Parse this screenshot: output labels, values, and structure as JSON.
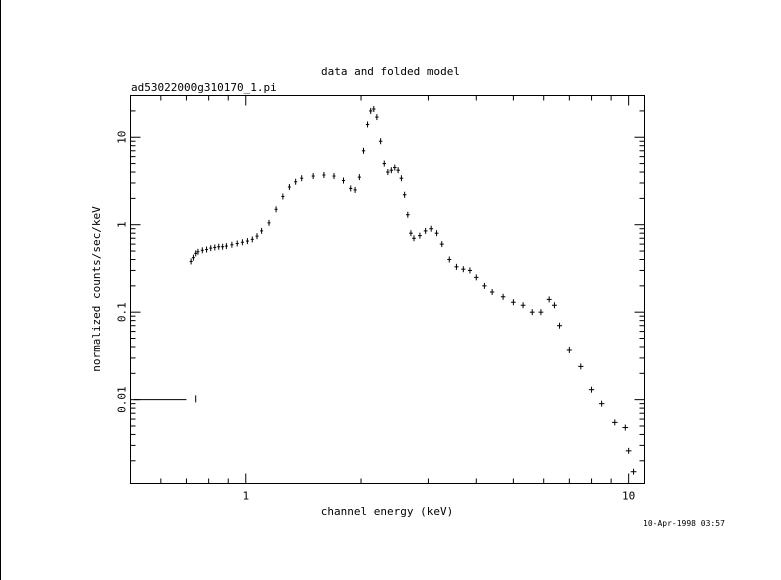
{
  "chart_data": {
    "type": "scatter",
    "title": "data and folded model",
    "subtitle": "ad53022000g310170_1.pi",
    "xlabel": "channel energy (keV)",
    "ylabel": "normalized counts/sec/keV",
    "xscale": "log",
    "yscale": "log",
    "xlim": [
      0.5,
      11
    ],
    "ylim": [
      0.0011,
      30
    ],
    "xticks": [
      {
        "value": 1,
        "label": "1"
      },
      {
        "value": 10,
        "label": "10"
      }
    ],
    "yticks": [
      {
        "value": 0.01,
        "label": "0.01"
      },
      {
        "value": 0.1,
        "label": "0.1"
      },
      {
        "value": 1,
        "label": "1"
      },
      {
        "value": 10,
        "label": "10"
      }
    ],
    "grid": false,
    "legend": "none",
    "timestamp": "10-Apr-1998 03:57",
    "color": "#000000",
    "series": [
      {
        "points": [
          {
            "x": 0.74,
            "y": 0.01,
            "xerr": [
              0.51,
              0.7
            ],
            "yerr": [
              0.0093,
              0.0112
            ]
          },
          {
            "x": 0.72,
            "y": 0.38
          },
          {
            "x": 0.73,
            "y": 0.42
          },
          {
            "x": 0.74,
            "y": 0.47
          },
          {
            "x": 0.75,
            "y": 0.49
          },
          {
            "x": 0.77,
            "y": 0.51
          },
          {
            "x": 0.79,
            "y": 0.52
          },
          {
            "x": 0.81,
            "y": 0.54
          },
          {
            "x": 0.83,
            "y": 0.55
          },
          {
            "x": 0.85,
            "y": 0.56
          },
          {
            "x": 0.87,
            "y": 0.56
          },
          {
            "x": 0.89,
            "y": 0.57
          },
          {
            "x": 0.92,
            "y": 0.59
          },
          {
            "x": 0.95,
            "y": 0.61
          },
          {
            "x": 0.98,
            "y": 0.63
          },
          {
            "x": 1.01,
            "y": 0.65
          },
          {
            "x": 1.04,
            "y": 0.68
          },
          {
            "x": 1.07,
            "y": 0.74
          },
          {
            "x": 1.1,
            "y": 0.85
          },
          {
            "x": 1.15,
            "y": 1.05
          },
          {
            "x": 1.2,
            "y": 1.5
          },
          {
            "x": 1.25,
            "y": 2.1
          },
          {
            "x": 1.3,
            "y": 2.7
          },
          {
            "x": 1.35,
            "y": 3.1
          },
          {
            "x": 1.4,
            "y": 3.4
          },
          {
            "x": 1.5,
            "y": 3.6
          },
          {
            "x": 1.6,
            "y": 3.7
          },
          {
            "x": 1.7,
            "y": 3.6
          },
          {
            "x": 1.8,
            "y": 3.2
          },
          {
            "x": 1.88,
            "y": 2.6
          },
          {
            "x": 1.93,
            "y": 2.5
          },
          {
            "x": 1.98,
            "y": 3.5
          },
          {
            "x": 2.03,
            "y": 7.0
          },
          {
            "x": 2.08,
            "y": 14.0
          },
          {
            "x": 2.12,
            "y": 20.0
          },
          {
            "x": 2.16,
            "y": 21.0
          },
          {
            "x": 2.2,
            "y": 17.0
          },
          {
            "x": 2.25,
            "y": 9.0
          },
          {
            "x": 2.3,
            "y": 5.0
          },
          {
            "x": 2.35,
            "y": 4.0
          },
          {
            "x": 2.4,
            "y": 4.2
          },
          {
            "x": 2.45,
            "y": 4.5
          },
          {
            "x": 2.5,
            "y": 4.2
          },
          {
            "x": 2.55,
            "y": 3.4
          },
          {
            "x": 2.6,
            "y": 2.2
          },
          {
            "x": 2.65,
            "y": 1.3
          },
          {
            "x": 2.7,
            "y": 0.8
          },
          {
            "x": 2.75,
            "y": 0.7
          },
          {
            "x": 2.85,
            "y": 0.75
          },
          {
            "x": 2.95,
            "y": 0.85
          },
          {
            "x": 3.05,
            "y": 0.9
          },
          {
            "x": 3.15,
            "y": 0.8
          },
          {
            "x": 3.25,
            "y": 0.6
          },
          {
            "x": 3.4,
            "y": 0.4
          },
          {
            "x": 3.55,
            "y": 0.33
          },
          {
            "x": 3.7,
            "y": 0.31
          },
          {
            "x": 3.85,
            "y": 0.3
          },
          {
            "x": 4.0,
            "y": 0.25
          },
          {
            "x": 4.2,
            "y": 0.2
          },
          {
            "x": 4.4,
            "y": 0.17
          },
          {
            "x": 4.7,
            "y": 0.15
          },
          {
            "x": 5.0,
            "y": 0.13
          },
          {
            "x": 5.3,
            "y": 0.12
          },
          {
            "x": 5.6,
            "y": 0.1
          },
          {
            "x": 5.9,
            "y": 0.1
          },
          {
            "x": 6.2,
            "y": 0.14
          },
          {
            "x": 6.4,
            "y": 0.12
          },
          {
            "x": 6.6,
            "y": 0.07
          },
          {
            "x": 7.0,
            "y": 0.037
          },
          {
            "x": 7.5,
            "y": 0.024
          },
          {
            "x": 8.0,
            "y": 0.013
          },
          {
            "x": 8.5,
            "y": 0.009
          },
          {
            "x": 9.2,
            "y": 0.0055
          },
          {
            "x": 9.8,
            "y": 0.0048
          },
          {
            "x": 10.0,
            "y": 0.0026
          },
          {
            "x": 10.3,
            "y": 0.0015
          }
        ]
      }
    ]
  }
}
